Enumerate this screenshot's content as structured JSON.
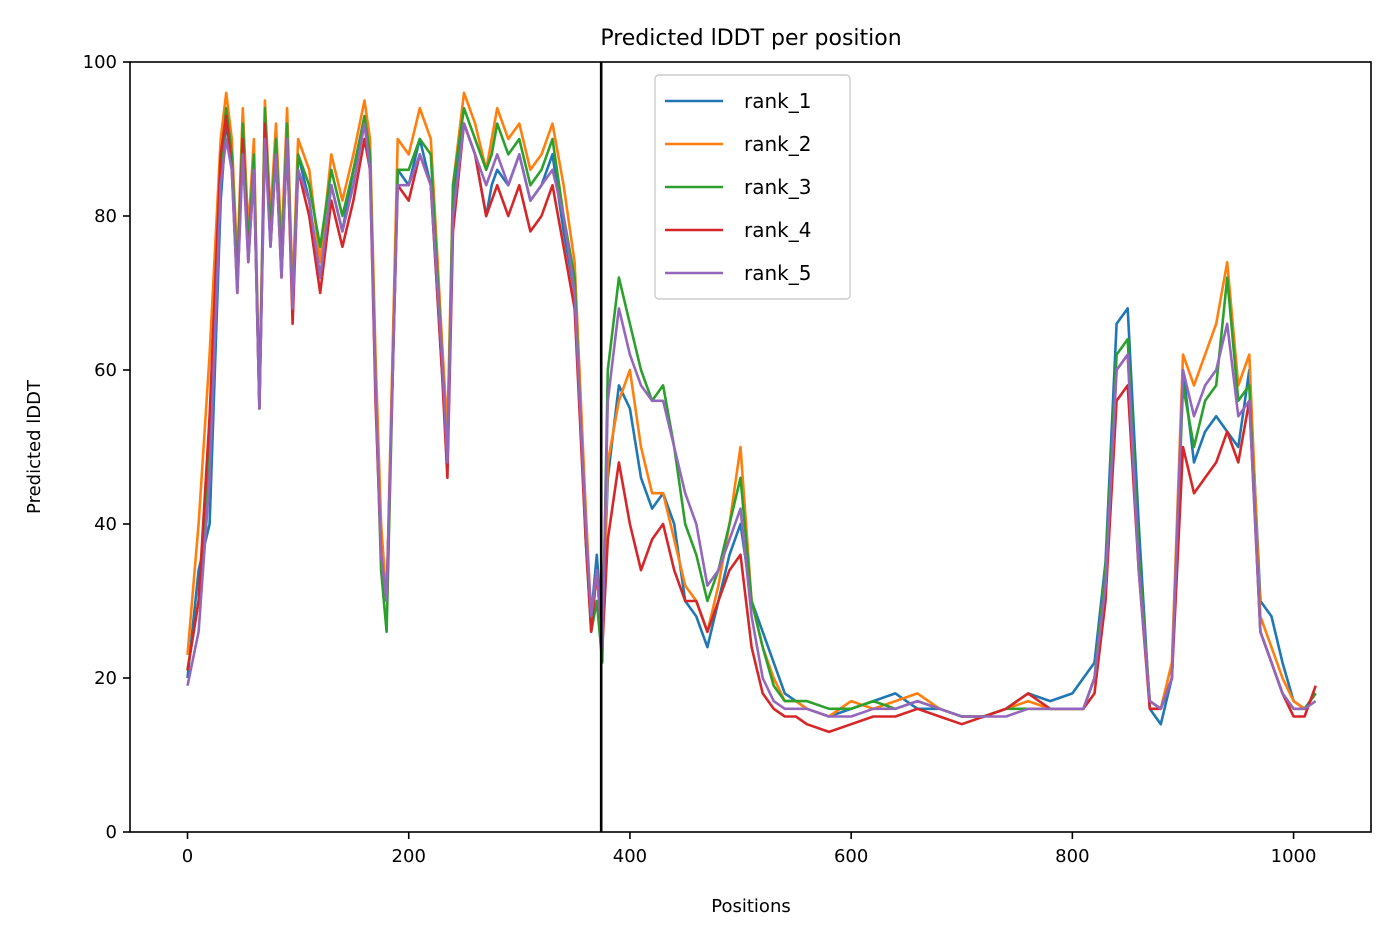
{
  "chart_data": {
    "type": "line",
    "title": "Predicted lDDT per position",
    "xlabel": "Positions",
    "ylabel": "Predicted lDDT",
    "xlim": [
      -52,
      1070
    ],
    "ylim": [
      0,
      100
    ],
    "xticks": [
      0,
      200,
      400,
      600,
      800,
      1000
    ],
    "yticks": [
      0,
      20,
      40,
      60,
      80,
      100
    ],
    "grid": false,
    "legend_position": "upper-center",
    "vline_x": 374,
    "colors": {
      "rank_1": "#1f77b4",
      "rank_2": "#ff7f0e",
      "rank_3": "#2ca02c",
      "rank_4": "#d62728",
      "rank_5": "#9467bd",
      "vline": "#000000"
    },
    "series": [
      {
        "name": "rank_1",
        "x": [
          0,
          10,
          20,
          30,
          35,
          40,
          45,
          50,
          55,
          60,
          65,
          70,
          75,
          80,
          85,
          90,
          95,
          100,
          110,
          120,
          130,
          140,
          150,
          160,
          165,
          170,
          175,
          180,
          190,
          200,
          210,
          220,
          230,
          235,
          240,
          250,
          260,
          270,
          275,
          280,
          290,
          300,
          310,
          320,
          330,
          340,
          350,
          360,
          365,
          370,
          375,
          380,
          390,
          400,
          410,
          420,
          430,
          440,
          450,
          460,
          470,
          480,
          490,
          500,
          510,
          520,
          530,
          540,
          550,
          560,
          580,
          600,
          620,
          640,
          660,
          680,
          700,
          720,
          740,
          760,
          780,
          800,
          810,
          820,
          830,
          840,
          850,
          860,
          870,
          880,
          890,
          900,
          910,
          920,
          930,
          940,
          950,
          960,
          970,
          980,
          990,
          1000,
          1010,
          1020
        ],
        "y": [
          20,
          34,
          40,
          82,
          92,
          88,
          72,
          90,
          76,
          86,
          55,
          90,
          78,
          88,
          74,
          90,
          68,
          88,
          82,
          72,
          84,
          78,
          86,
          92,
          88,
          60,
          38,
          30,
          86,
          84,
          90,
          84,
          60,
          50,
          82,
          92,
          88,
          80,
          84,
          86,
          84,
          88,
          82,
          84,
          88,
          78,
          70,
          40,
          28,
          36,
          26,
          46,
          58,
          55,
          46,
          42,
          44,
          40,
          30,
          28,
          24,
          30,
          36,
          40,
          30,
          26,
          22,
          18,
          17,
          16,
          15,
          16,
          17,
          18,
          16,
          16,
          15,
          15,
          16,
          18,
          17,
          18,
          20,
          22,
          35,
          66,
          68,
          40,
          16,
          14,
          20,
          60,
          48,
          52,
          54,
          52,
          50,
          60,
          30,
          28,
          22,
          17,
          16,
          18
        ]
      },
      {
        "name": "rank_2",
        "x": [
          0,
          10,
          20,
          30,
          35,
          40,
          45,
          50,
          55,
          60,
          65,
          70,
          75,
          80,
          85,
          90,
          95,
          100,
          110,
          120,
          130,
          140,
          150,
          160,
          165,
          170,
          175,
          180,
          190,
          200,
          210,
          220,
          230,
          235,
          240,
          250,
          260,
          270,
          275,
          280,
          290,
          300,
          310,
          320,
          330,
          340,
          350,
          360,
          365,
          370,
          375,
          380,
          390,
          400,
          410,
          420,
          430,
          440,
          450,
          460,
          470,
          480,
          490,
          500,
          510,
          520,
          530,
          540,
          550,
          560,
          580,
          600,
          620,
          640,
          660,
          680,
          700,
          720,
          740,
          760,
          780,
          800,
          810,
          820,
          830,
          840,
          850,
          860,
          870,
          880,
          890,
          900,
          910,
          920,
          930,
          940,
          950,
          960,
          970,
          980,
          990,
          1000,
          1010,
          1020
        ],
        "y": [
          23,
          40,
          62,
          90,
          96,
          90,
          74,
          94,
          78,
          90,
          56,
          95,
          80,
          92,
          76,
          94,
          70,
          90,
          86,
          74,
          88,
          82,
          88,
          95,
          90,
          62,
          40,
          30,
          90,
          88,
          94,
          90,
          64,
          52,
          84,
          96,
          92,
          86,
          90,
          94,
          90,
          92,
          86,
          88,
          92,
          84,
          74,
          42,
          28,
          34,
          24,
          48,
          56,
          60,
          50,
          44,
          44,
          38,
          32,
          30,
          26,
          32,
          40,
          50,
          30,
          24,
          20,
          17,
          17,
          16,
          15,
          17,
          16,
          17,
          18,
          16,
          15,
          15,
          16,
          17,
          16,
          16,
          16,
          20,
          34,
          60,
          62,
          36,
          17,
          16,
          22,
          62,
          58,
          62,
          66,
          74,
          58,
          62,
          28,
          24,
          20,
          17,
          16,
          18
        ]
      },
      {
        "name": "rank_3",
        "x": [
          0,
          10,
          20,
          30,
          35,
          40,
          45,
          50,
          55,
          60,
          65,
          70,
          75,
          80,
          85,
          90,
          95,
          100,
          110,
          120,
          130,
          140,
          150,
          160,
          165,
          170,
          175,
          180,
          190,
          200,
          210,
          220,
          230,
          235,
          240,
          250,
          260,
          270,
          275,
          280,
          290,
          300,
          310,
          320,
          330,
          340,
          350,
          360,
          365,
          370,
          375,
          380,
          390,
          400,
          410,
          420,
          430,
          440,
          450,
          460,
          470,
          480,
          490,
          500,
          510,
          520,
          530,
          540,
          550,
          560,
          580,
          600,
          620,
          640,
          660,
          680,
          700,
          720,
          740,
          760,
          780,
          800,
          810,
          820,
          830,
          840,
          850,
          860,
          870,
          880,
          890,
          900,
          910,
          920,
          930,
          940,
          950,
          960,
          970,
          980,
          990,
          1000,
          1010,
          1020
        ],
        "y": [
          21,
          30,
          50,
          86,
          94,
          88,
          72,
          92,
          76,
          88,
          56,
          94,
          78,
          90,
          74,
          92,
          68,
          88,
          84,
          76,
          86,
          80,
          86,
          93,
          88,
          58,
          34,
          26,
          86,
          86,
          90,
          88,
          62,
          48,
          84,
          94,
          90,
          86,
          88,
          92,
          88,
          90,
          84,
          86,
          90,
          80,
          72,
          38,
          26,
          30,
          22,
          60,
          72,
          66,
          60,
          56,
          58,
          50,
          40,
          36,
          30,
          34,
          40,
          46,
          30,
          24,
          19,
          17,
          17,
          17,
          16,
          16,
          17,
          16,
          17,
          16,
          15,
          15,
          16,
          16,
          16,
          16,
          16,
          20,
          34,
          62,
          64,
          36,
          17,
          16,
          20,
          58,
          50,
          56,
          58,
          72,
          56,
          58,
          26,
          22,
          18,
          16,
          16,
          18
        ]
      },
      {
        "name": "rank_4",
        "x": [
          0,
          10,
          20,
          30,
          35,
          40,
          45,
          50,
          55,
          60,
          65,
          70,
          75,
          80,
          85,
          90,
          95,
          100,
          110,
          120,
          130,
          140,
          150,
          160,
          165,
          170,
          175,
          180,
          190,
          200,
          210,
          220,
          230,
          235,
          240,
          250,
          260,
          270,
          275,
          280,
          290,
          300,
          310,
          320,
          330,
          340,
          350,
          360,
          365,
          370,
          375,
          380,
          390,
          400,
          410,
          420,
          430,
          440,
          450,
          460,
          470,
          480,
          490,
          500,
          510,
          520,
          530,
          540,
          550,
          560,
          580,
          600,
          620,
          640,
          660,
          680,
          700,
          720,
          740,
          760,
          780,
          800,
          810,
          820,
          830,
          840,
          850,
          860,
          870,
          880,
          890,
          900,
          910,
          920,
          930,
          940,
          950,
          960,
          970,
          980,
          990,
          1000,
          1010,
          1020
        ],
        "y": [
          21,
          30,
          54,
          88,
          93,
          86,
          70,
          90,
          74,
          86,
          55,
          92,
          76,
          88,
          72,
          90,
          66,
          86,
          80,
          70,
          82,
          76,
          82,
          90,
          86,
          56,
          36,
          30,
          84,
          82,
          88,
          84,
          60,
          46,
          78,
          92,
          88,
          80,
          82,
          84,
          80,
          84,
          78,
          80,
          84,
          76,
          68,
          38,
          26,
          34,
          24,
          38,
          48,
          40,
          34,
          38,
          40,
          34,
          30,
          30,
          26,
          30,
          34,
          36,
          24,
          18,
          16,
          15,
          15,
          14,
          13,
          14,
          15,
          15,
          16,
          15,
          14,
          15,
          16,
          18,
          16,
          16,
          16,
          18,
          30,
          56,
          58,
          34,
          16,
          16,
          20,
          50,
          44,
          46,
          48,
          52,
          48,
          56,
          26,
          22,
          18,
          15,
          15,
          19
        ]
      },
      {
        "name": "rank_5",
        "x": [
          0,
          10,
          20,
          30,
          35,
          40,
          45,
          50,
          55,
          60,
          65,
          70,
          75,
          80,
          85,
          90,
          95,
          100,
          110,
          120,
          130,
          140,
          150,
          160,
          165,
          170,
          175,
          180,
          190,
          200,
          210,
          220,
          230,
          235,
          240,
          250,
          260,
          270,
          275,
          280,
          290,
          300,
          310,
          320,
          330,
          340,
          350,
          360,
          365,
          370,
          375,
          380,
          390,
          400,
          410,
          420,
          430,
          440,
          450,
          460,
          470,
          480,
          490,
          500,
          510,
          520,
          530,
          540,
          550,
          560,
          580,
          600,
          620,
          640,
          660,
          680,
          700,
          720,
          740,
          760,
          780,
          800,
          810,
          820,
          830,
          840,
          850,
          860,
          870,
          880,
          890,
          900,
          910,
          920,
          930,
          940,
          950,
          960,
          970,
          980,
          990,
          1000,
          1010,
          1020
        ],
        "y": [
          19,
          26,
          46,
          84,
          90,
          86,
          70,
          88,
          74,
          86,
          55,
          90,
          76,
          88,
          72,
          90,
          68,
          86,
          82,
          72,
          84,
          78,
          84,
          92,
          86,
          58,
          36,
          30,
          84,
          84,
          88,
          84,
          62,
          48,
          80,
          92,
          88,
          84,
          86,
          88,
          84,
          88,
          82,
          84,
          86,
          80,
          70,
          40,
          28,
          34,
          24,
          56,
          68,
          62,
          58,
          56,
          56,
          50,
          44,
          40,
          32,
          34,
          38,
          42,
          28,
          20,
          17,
          16,
          16,
          16,
          15,
          15,
          16,
          16,
          17,
          16,
          15,
          15,
          15,
          16,
          16,
          16,
          16,
          20,
          32,
          60,
          62,
          34,
          17,
          16,
          20,
          60,
          54,
          58,
          60,
          66,
          54,
          56,
          26,
          22,
          18,
          16,
          16,
          17
        ]
      }
    ]
  }
}
